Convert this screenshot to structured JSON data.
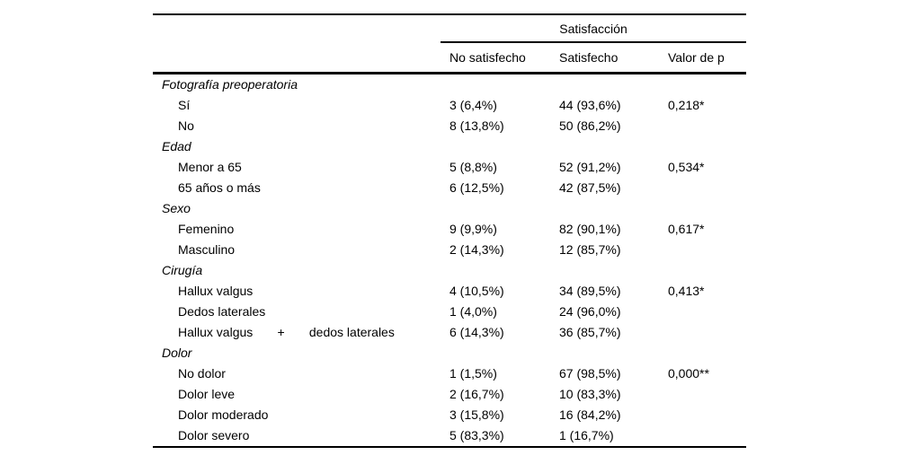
{
  "page_background": "#ffffff",
  "table": {
    "text_color": "#000000",
    "rule_color": "#000000",
    "spanner_header": "Satisfacción",
    "column_headers": [
      "No satisfecho",
      "Satisfecho",
      "Valor de p"
    ],
    "groups": [
      {
        "label": "Fotografía preoperatoria",
        "rows": [
          {
            "label": "Sí",
            "no_satisfecho": "3 (6,4%)",
            "satisfecho": "44 (93,6%)",
            "p_value": "0,218*"
          },
          {
            "label": "No",
            "no_satisfecho": "8 (13,8%)",
            "satisfecho": "50 (86,2%)",
            "p_value": ""
          }
        ]
      },
      {
        "label": "Edad",
        "rows": [
          {
            "label": "Menor a 65",
            "no_satisfecho": "5 (8,8%)",
            "satisfecho": "52 (91,2%)",
            "p_value": "0,534*"
          },
          {
            "label": "65 años o más",
            "no_satisfecho": "6 (12,5%)",
            "satisfecho": "42 (87,5%)",
            "p_value": ""
          }
        ]
      },
      {
        "label": "Sexo",
        "rows": [
          {
            "label": "Femenino",
            "no_satisfecho": "9 (9,9%)",
            "satisfecho": "82 (90,1%)",
            "p_value": "0,617*"
          },
          {
            "label": "Masculino",
            "no_satisfecho": "2 (14,3%)",
            "satisfecho": "12 (85,7%)",
            "p_value": ""
          }
        ]
      },
      {
        "label": "Cirugía",
        "rows": [
          {
            "label": "Hallux valgus",
            "no_satisfecho": "4 (10,5%)",
            "satisfecho": "34 (89,5%)",
            "p_value": "0,413*"
          },
          {
            "label": "Dedos laterales",
            "no_satisfecho": "1 (4,0%)",
            "satisfecho": "24 (96,0%)",
            "p_value": ""
          },
          {
            "label": "Hallux valgus       +       dedos laterales",
            "no_satisfecho": "6 (14,3%)",
            "satisfecho": "36 (85,7%)",
            "p_value": ""
          }
        ]
      },
      {
        "label": "Dolor",
        "rows": [
          {
            "label": "No dolor",
            "no_satisfecho": "1 (1,5%)",
            "satisfecho": "67 (98,5%)",
            "p_value": "0,000**"
          },
          {
            "label": "Dolor leve",
            "no_satisfecho": "2 (16,7%)",
            "satisfecho": "10 (83,3%)",
            "p_value": ""
          },
          {
            "label": "Dolor moderado",
            "no_satisfecho": "3 (15,8%)",
            "satisfecho": "16 (84,2%)",
            "p_value": ""
          },
          {
            "label": "Dolor severo",
            "no_satisfecho": "5 (83,3%)",
            "satisfecho": "1 (16,7%)",
            "p_value": ""
          }
        ]
      }
    ]
  }
}
